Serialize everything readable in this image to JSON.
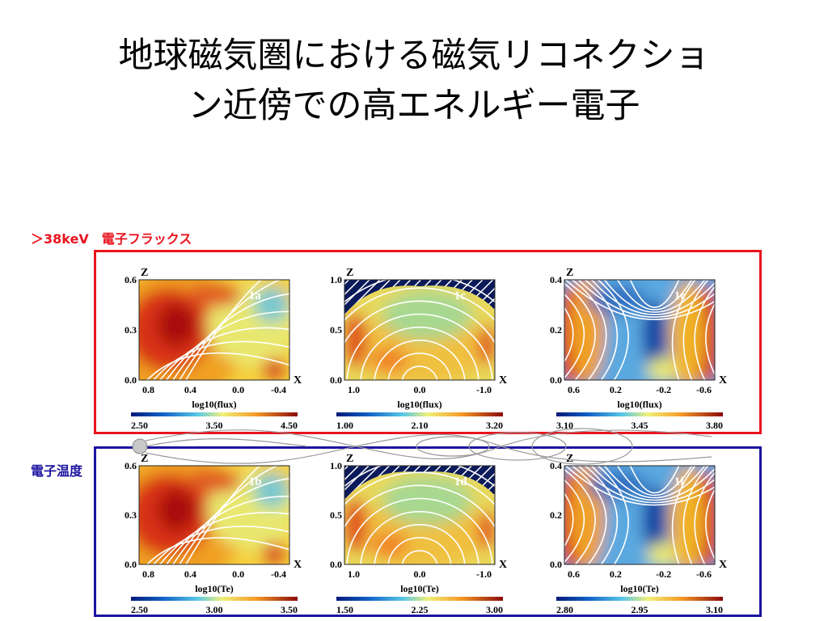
{
  "slide": {
    "title_line1": "地球磁気圏における磁気リコネクショ",
    "title_line2": "ン近傍での高エネルギー電子"
  },
  "colors": {
    "flux_box": "#e8141e",
    "temp_box": "#1c14a0",
    "flux_label": "#e8141e",
    "temp_label": "#1c14a0"
  },
  "sections": {
    "flux_label": "＞38keV　電子フラックス",
    "temp_label": "電子温度"
  },
  "panels": [
    {
      "id": "1a",
      "z_axis": "Z",
      "x_axis": "X",
      "z_ticks": [
        "0.6",
        "0.3",
        "0.0"
      ],
      "x_ticks": [
        "0.8",
        "0.4",
        "0.0",
        "-0.4"
      ],
      "colorbar_label": "log10(flux)",
      "cb_ticks": [
        "2.50",
        "3.50",
        "4.50"
      ],
      "style": "asym",
      "hatch": false,
      "tag": "1a"
    },
    {
      "id": "1c",
      "z_axis": "Z",
      "x_axis": "X",
      "z_ticks": [
        "1.0",
        "0.5",
        "0.0"
      ],
      "x_ticks": [
        "1.0",
        "0.0",
        "-1.0"
      ],
      "colorbar_label": "log10(flux)",
      "cb_ticks": [
        "1.00",
        "2.10",
        "3.20"
      ],
      "style": "dome",
      "hatch": true,
      "tag": "1c"
    },
    {
      "id": "1e",
      "z_axis": "Z",
      "x_axis": "X",
      "z_ticks": [
        "0.4",
        "0.2",
        "0.0"
      ],
      "x_ticks": [
        "0.6",
        "0.2",
        "-0.2",
        "-0.6"
      ],
      "colorbar_label": "log10(flux)",
      "cb_ticks": [
        "3.10",
        "3.45",
        "3.80"
      ],
      "style": "xpoint",
      "hatch": false,
      "tag": "1e"
    },
    {
      "id": "1b",
      "z_axis": "Z",
      "x_axis": "X",
      "z_ticks": [
        "0.6",
        "0.3",
        "0.0"
      ],
      "x_ticks": [
        "0.8",
        "0.4",
        "0.0",
        "-0.4"
      ],
      "colorbar_label": "log10(Te)",
      "cb_ticks": [
        "2.50",
        "3.00",
        "3.50"
      ],
      "style": "asym",
      "hatch": false,
      "tag": "1b"
    },
    {
      "id": "1d",
      "z_axis": "Z",
      "x_axis": "X",
      "z_ticks": [
        "1.0",
        "0.5",
        "0.0"
      ],
      "x_ticks": [
        "1.0",
        "0.0",
        "-1.0"
      ],
      "colorbar_label": "log10(Te)",
      "cb_ticks": [
        "1.50",
        "2.25",
        "3.00"
      ],
      "style": "dome",
      "hatch": true,
      "tag": "1d"
    },
    {
      "id": "1f",
      "z_axis": "Z",
      "x_axis": "X",
      "z_ticks": [
        "0.4",
        "0.2",
        "0.0"
      ],
      "x_ticks": [
        "0.6",
        "0.2",
        "-0.2",
        "-0.6"
      ],
      "colorbar_label": "log10(Te)",
      "cb_ticks": [
        "2.80",
        "2.95",
        "3.10"
      ],
      "style": "xpoint",
      "hatch": false,
      "tag": "1f"
    }
  ]
}
